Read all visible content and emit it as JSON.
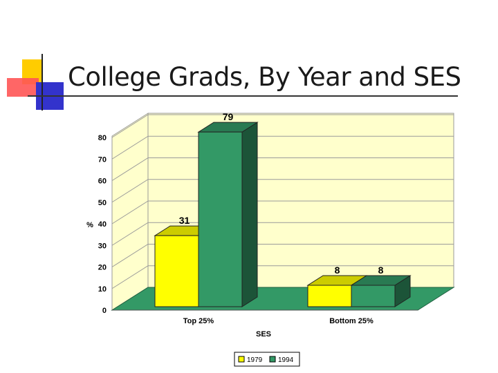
{
  "slide": {
    "title": "College Grads, By Year and SES"
  },
  "colors": {
    "series_1979": "#ffff00",
    "series_1994": "#339966",
    "wall": "#ffffcc",
    "floor": "#339966"
  },
  "chart_data": {
    "type": "bar",
    "title": "",
    "xlabel": "SES",
    "ylabel": "%",
    "ylim": [
      0,
      80
    ],
    "yticks": [
      0,
      10,
      20,
      30,
      40,
      50,
      60,
      70,
      80
    ],
    "categories": [
      "Top 25%",
      "Bottom  25%"
    ],
    "series": [
      {
        "name": "1979",
        "values": [
          31,
          8
        ]
      },
      {
        "name": "1994",
        "values": [
          79,
          8
        ]
      }
    ],
    "data_labels": true,
    "grid": true,
    "legend_position": "bottom",
    "style": "3d-clustered-column"
  }
}
